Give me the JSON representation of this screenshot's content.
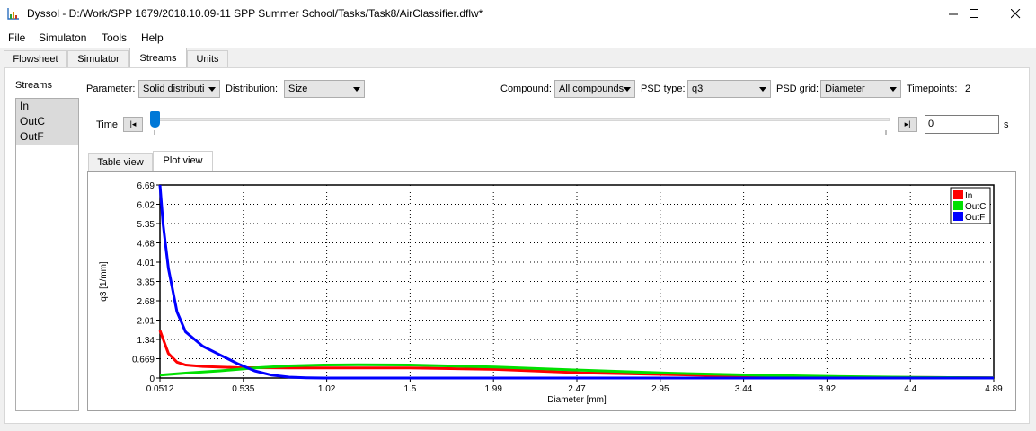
{
  "window": {
    "title": "Dyssol - D:/Work/SPP 1679/2018.10.09-11 SPP Summer School/Tasks/Task8/AirClassifier.dflw*",
    "minimize": "—",
    "maximize": "☐",
    "close": "✕"
  },
  "menu": [
    "File",
    "Simulaton",
    "Tools",
    "Help"
  ],
  "tabs": [
    "Flowsheet",
    "Simulator",
    "Streams",
    "Units"
  ],
  "active_tab": "Streams",
  "streams": {
    "label": "Streams",
    "items": [
      "In",
      "OutC",
      "OutF"
    ]
  },
  "controls": {
    "parameter_label": "Parameter:",
    "parameter_value": "Solid distributi",
    "distribution_label": "Distribution:",
    "distribution_value": "Size",
    "compound_label": "Compound:",
    "compound_value": "All compounds",
    "psd_type_label": "PSD type:",
    "psd_type_value": "q3",
    "psd_grid_label": "PSD grid:",
    "psd_grid_value": "Diameter",
    "timepoints_label": "Timepoints:",
    "timepoints_value": "2",
    "time_label": "Time",
    "time_value": "0",
    "time_unit": "s",
    "prev_button": "|◂",
    "next_button": "▸|",
    "slider_position": 0
  },
  "view_tabs": [
    "Table view",
    "Plot view"
  ],
  "active_view": "Plot view",
  "colors": {
    "In": "#ff0000",
    "OutC": "#00e000",
    "OutF": "#0000ff"
  },
  "chart_data": {
    "type": "line",
    "xlabel": "Diameter [mm]",
    "ylabel": "q3 [1/mm]",
    "xlim": [
      0.0512,
      4.89
    ],
    "ylim": [
      0,
      6.69
    ],
    "x_ticks": [
      "0.0512",
      "0.535",
      "1.02",
      "1.5",
      "1.99",
      "2.47",
      "2.95",
      "3.44",
      "3.92",
      "4.4",
      "4.89"
    ],
    "y_ticks": [
      "0",
      "0.669",
      "1.34",
      "2.01",
      "2.68",
      "3.35",
      "4.01",
      "4.68",
      "5.35",
      "6.02",
      "6.69"
    ],
    "grid": true,
    "legend_position": "top-right",
    "series": [
      {
        "name": "In",
        "color": "#ff0000",
        "x": [
          0.0512,
          0.1,
          0.15,
          0.2,
          0.3,
          0.5,
          0.8,
          1.0,
          1.5,
          2.0,
          2.5,
          3.0,
          3.5,
          4.0,
          4.5,
          4.89
        ],
        "y": [
          1.65,
          0.85,
          0.55,
          0.45,
          0.4,
          0.36,
          0.35,
          0.35,
          0.35,
          0.3,
          0.18,
          0.12,
          0.06,
          0.03,
          0.02,
          0.01
        ]
      },
      {
        "name": "OutC",
        "color": "#00e000",
        "x": [
          0.0512,
          0.2,
          0.4,
          0.6,
          0.8,
          1.0,
          1.2,
          1.5,
          2.0,
          2.5,
          3.0,
          3.5,
          4.0,
          4.5,
          4.89
        ],
        "y": [
          0.1,
          0.17,
          0.25,
          0.35,
          0.42,
          0.45,
          0.46,
          0.45,
          0.38,
          0.27,
          0.17,
          0.1,
          0.05,
          0.02,
          0.01
        ]
      },
      {
        "name": "OutF",
        "color": "#0000ff",
        "x": [
          0.0512,
          0.07,
          0.1,
          0.15,
          0.2,
          0.3,
          0.4,
          0.5,
          0.6,
          0.7,
          0.8,
          0.9,
          1.0,
          1.5,
          2.0,
          3.0,
          4.0,
          4.89
        ],
        "y": [
          6.69,
          5.3,
          3.8,
          2.3,
          1.6,
          1.1,
          0.8,
          0.5,
          0.25,
          0.1,
          0.03,
          0.01,
          0,
          0,
          0,
          0,
          0,
          0
        ]
      }
    ]
  }
}
